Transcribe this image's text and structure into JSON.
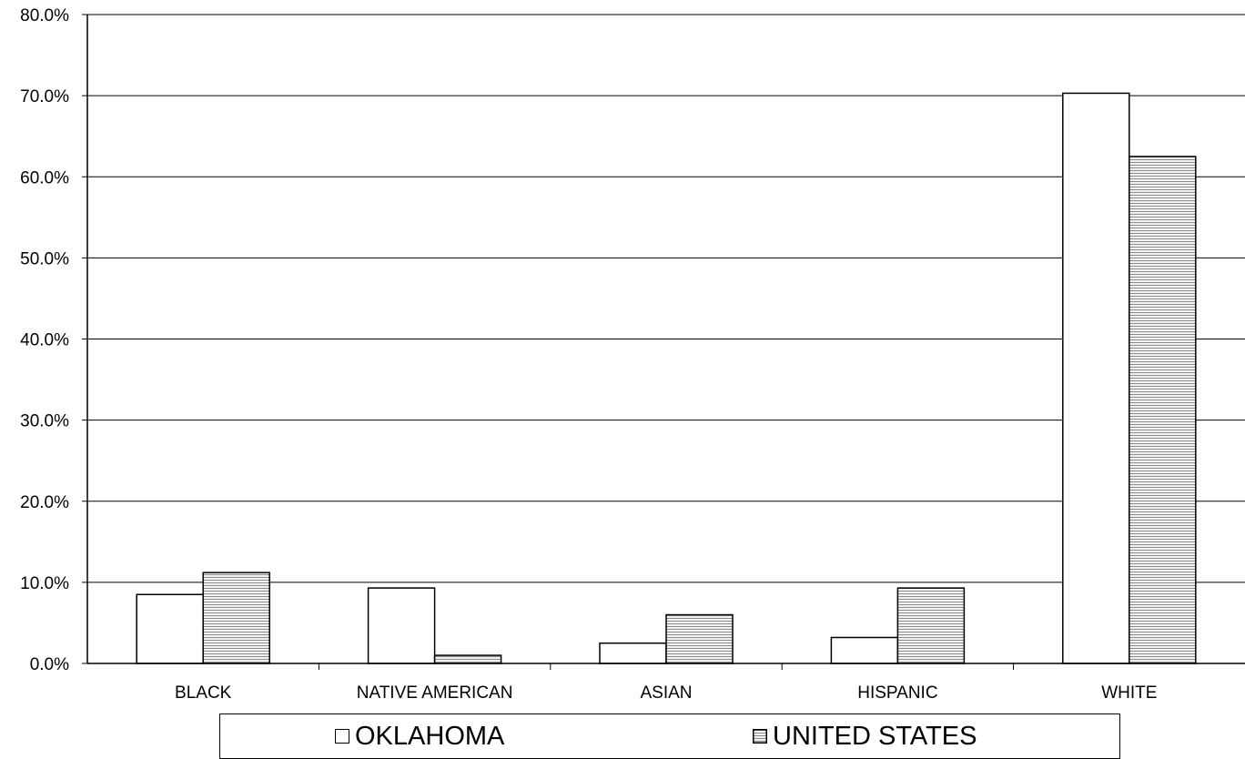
{
  "chart_data": {
    "type": "bar",
    "categories": [
      "BLACK",
      "NATIVE AMERICAN",
      "ASIAN",
      "HISPANIC",
      "WHITE"
    ],
    "series": [
      {
        "name": "OKLAHOMA",
        "values": [
          8.5,
          9.3,
          2.5,
          3.2,
          70.3
        ],
        "fill": "#ffffff"
      },
      {
        "name": "UNITED STATES",
        "values": [
          11.2,
          1.0,
          6.0,
          9.3,
          62.5
        ],
        "fill": "#d9d9d9",
        "pattern": "horizontal-stripes"
      }
    ],
    "ylim": [
      0,
      80
    ],
    "yticks": [
      "0.0%",
      "10.0%",
      "20.0%",
      "30.0%",
      "40.0%",
      "50.0%",
      "60.0%",
      "70.0%",
      "80.0%"
    ],
    "grid": true,
    "legend_position": "bottom"
  }
}
